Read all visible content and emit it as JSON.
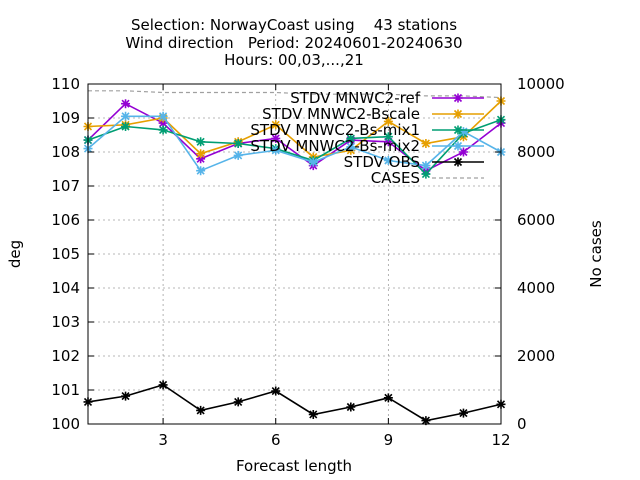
{
  "chart_data": {
    "type": "line",
    "title_lines": [
      "Selection: NorwayCoast using    43 stations",
      "Wind direction   Period: 20240601-20240630",
      "Hours: 00,03,...,21"
    ],
    "xlabel": "Forecast length",
    "ylabel": "deg",
    "y2label": "No cases",
    "xlim": [
      1,
      12
    ],
    "ylim": [
      100,
      110
    ],
    "y2lim": [
      0,
      10000
    ],
    "x_ticks": [
      "3",
      "6",
      "9",
      "12"
    ],
    "y_ticks": [
      "100",
      "101",
      "102",
      "103",
      "104",
      "105",
      "106",
      "107",
      "108",
      "109",
      "110"
    ],
    "y2_ticks": [
      "0",
      "2000",
      "4000",
      "6000",
      "8000",
      "10000"
    ],
    "grid": true,
    "legend_position": "top-right",
    "x": [
      1,
      2,
      3,
      4,
      5,
      6,
      7,
      8,
      9,
      10,
      11,
      12
    ],
    "series": [
      {
        "name": "STDV MNWC2-ref",
        "color": "#9400d3",
        "marker": "x",
        "axis": "y",
        "values": [
          108.35,
          109.42,
          108.85,
          107.8,
          108.25,
          108.4,
          107.6,
          108.35,
          108.3,
          107.45,
          108.0,
          108.85
        ]
      },
      {
        "name": "STDV MNWC2-Bscale",
        "color": "#e69f00",
        "marker": "x",
        "axis": "y",
        "values": [
          108.75,
          108.8,
          109.0,
          107.95,
          108.3,
          108.8,
          107.85,
          108.05,
          108.9,
          108.25,
          108.45,
          109.5
        ]
      },
      {
        "name": "STDV MNWC2-Bs-mix1",
        "color": "#009e73",
        "marker": "x",
        "axis": "y",
        "values": [
          108.35,
          108.75,
          108.65,
          108.3,
          108.25,
          108.1,
          107.75,
          108.4,
          108.45,
          107.35,
          108.55,
          108.95
        ]
      },
      {
        "name": "STDV MNWC2-Bs-mix2",
        "color": "#56b4e9",
        "marker": "x",
        "axis": "y",
        "values": [
          108.1,
          109.05,
          109.05,
          107.45,
          107.9,
          108.05,
          107.7,
          108.15,
          107.75,
          107.6,
          108.6,
          108.0
        ]
      },
      {
        "name": "STDV OBS",
        "color": "#000000",
        "marker": "x",
        "axis": "y",
        "values": [
          100.65,
          100.82,
          101.15,
          100.4,
          100.65,
          100.97,
          100.28,
          100.5,
          100.77,
          100.1,
          100.32,
          100.58
        ]
      },
      {
        "name": "CASES",
        "color": "#a0a0a0",
        "marker": "none",
        "dash": true,
        "axis": "y2",
        "values": [
          9800,
          9800,
          9750,
          9750,
          9750,
          9750,
          9700,
          9700,
          9700,
          9650,
          9650,
          9600
        ]
      }
    ]
  }
}
